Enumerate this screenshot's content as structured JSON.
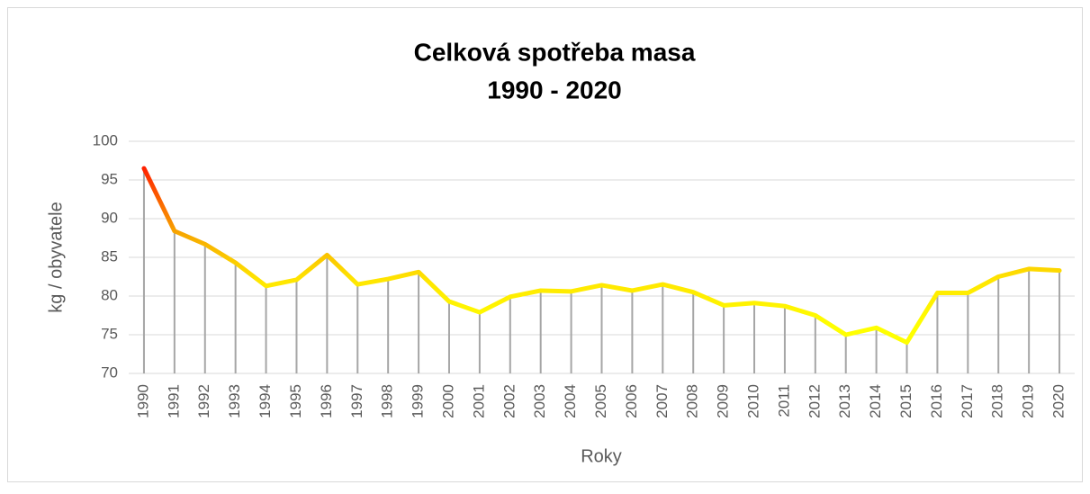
{
  "chart_data": {
    "type": "line",
    "title": "Celková spotřeba masa",
    "subtitle": "1990 - 2020",
    "x_label": "Roky",
    "y_label": "kg / obyvatele",
    "categories": [
      "1990",
      "1991",
      "1992",
      "1993",
      "1994",
      "1995",
      "1996",
      "1997",
      "1998",
      "1999",
      "2000",
      "2001",
      "2002",
      "2003",
      "2004",
      "2005",
      "2006",
      "2007",
      "2008",
      "2009",
      "2010",
      "2011",
      "2012",
      "2013",
      "2014",
      "2015",
      "2016",
      "2017",
      "2018",
      "2019",
      "2020"
    ],
    "values": [
      96.5,
      88.4,
      86.7,
      84.3,
      81.3,
      82.1,
      85.3,
      81.5,
      82.2,
      83.1,
      79.3,
      77.9,
      79.9,
      80.7,
      80.6,
      81.4,
      80.7,
      81.5,
      80.5,
      78.8,
      79.1,
      78.7,
      77.5,
      75.0,
      75.9,
      74.0,
      80.4,
      80.4,
      82.5,
      83.5,
      83.3
    ],
    "line_colors": [
      "#ff1a00",
      "#f7a800",
      "#ffe600",
      "#ffff00"
    ],
    "drop_lines": true,
    "ylim": [
      70,
      100
    ],
    "yticks": [
      70,
      75,
      80,
      85,
      90,
      95,
      100
    ],
    "grid": true
  }
}
